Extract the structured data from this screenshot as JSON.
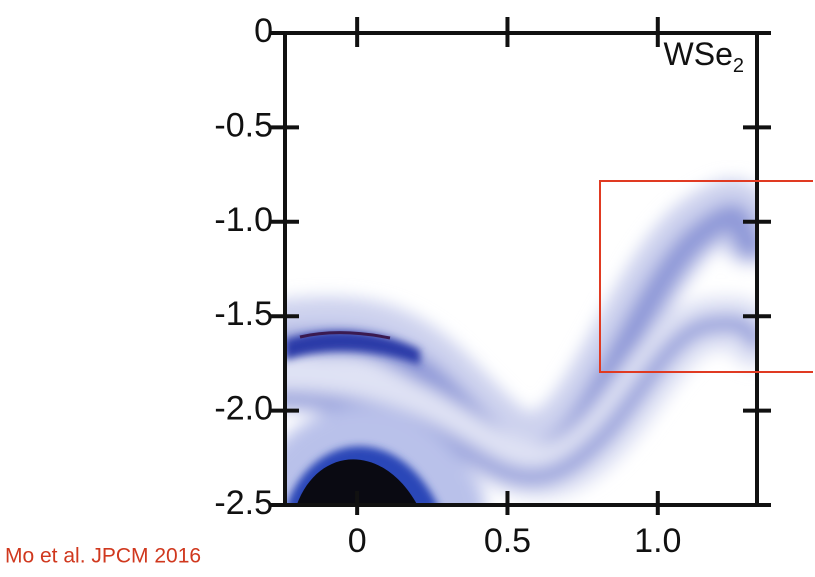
{
  "chart_data": {
    "type": "image",
    "annotation": "WSe",
    "annotation_subscript": "2",
    "xlim": [
      -0.24,
      1.33
    ],
    "xticks": [
      0,
      0.5,
      {
        "value": 1,
        "label": "1.0"
      }
    ],
    "ylim": [
      -2.5,
      0
    ],
    "yticks": [
      0,
      -0.5,
      {
        "value": -1,
        "label": "-1.0"
      },
      -1.5,
      {
        "value": -2,
        "label": "-2.0"
      },
      -2.5
    ]
  },
  "source": "Mo et al. JPCM 2016"
}
